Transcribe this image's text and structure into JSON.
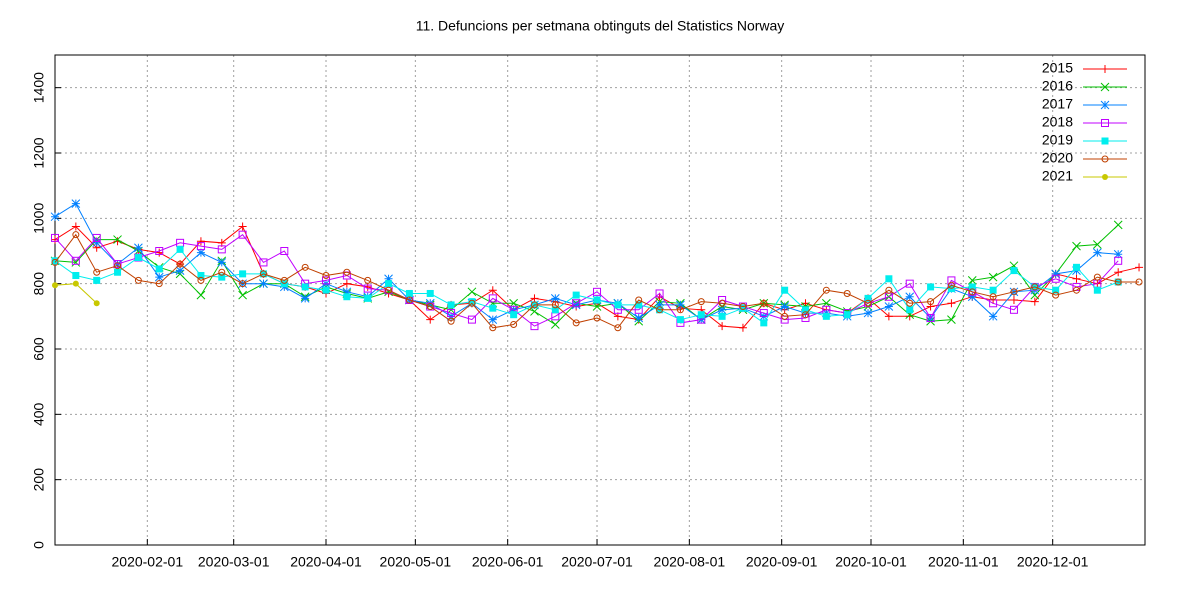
{
  "chart_data": {
    "type": "line",
    "title": "11. Defuncions per setmana obtinguts del Statistics Norway",
    "x": [
      "2020-01-01",
      "2020-01-08",
      "2020-01-15",
      "2020-01-22",
      "2020-01-29",
      "2020-02-05",
      "2020-02-12",
      "2020-02-19",
      "2020-02-26",
      "2020-03-04",
      "2020-03-11",
      "2020-03-18",
      "2020-03-25",
      "2020-04-01",
      "2020-04-08",
      "2020-04-15",
      "2020-04-22",
      "2020-04-29",
      "2020-05-06",
      "2020-05-13",
      "2020-05-20",
      "2020-05-27",
      "2020-06-03",
      "2020-06-10",
      "2020-06-17",
      "2020-06-24",
      "2020-07-01",
      "2020-07-08",
      "2020-07-15",
      "2020-07-22",
      "2020-07-29",
      "2020-08-05",
      "2020-08-12",
      "2020-08-19",
      "2020-08-26",
      "2020-09-02",
      "2020-09-09",
      "2020-09-16",
      "2020-09-23",
      "2020-09-30",
      "2020-10-07",
      "2020-10-14",
      "2020-10-21",
      "2020-10-28",
      "2020-11-04",
      "2020-11-11",
      "2020-11-18",
      "2020-11-25",
      "2020-12-02",
      "2020-12-09",
      "2020-12-16",
      "2020-12-23",
      "2020-12-30"
    ],
    "xlim": [
      "2020-01-01",
      "2021-01-01"
    ],
    "xticks": [
      "2020-02-01",
      "2020-03-01",
      "2020-04-01",
      "2020-05-01",
      "2020-06-01",
      "2020-07-01",
      "2020-08-01",
      "2020-09-01",
      "2020-10-01",
      "2020-11-01",
      "2020-12-01"
    ],
    "ylim": [
      0,
      1500
    ],
    "yticks": [
      0,
      200,
      400,
      600,
      800,
      1000,
      1200,
      1400
    ],
    "grid": true,
    "legend": "top-right",
    "series": [
      {
        "name": "2015",
        "color": "#ff0000",
        "marker": "plus",
        "values": [
          935,
          975,
          910,
          930,
          905,
          895,
          860,
          930,
          925,
          975,
          830,
          800,
          790,
          770,
          800,
          790,
          770,
          750,
          690,
          735,
          740,
          780,
          720,
          755,
          745,
          730,
          740,
          700,
          690,
          760,
          725,
          720,
          670,
          665,
          740,
          720,
          740,
          720,
          710,
          755,
          700,
          700,
          730,
          740,
          760,
          750,
          750,
          745,
          830,
          815,
          800,
          835,
          850
        ]
      },
      {
        "name": "2016",
        "color": "#00c000",
        "marker": "cross",
        "values": [
          870,
          865,
          935,
          935,
          900,
          850,
          830,
          765,
          870,
          765,
          800,
          800,
          760,
          790,
          770,
          755,
          775,
          750,
          735,
          720,
          775,
          740,
          740,
          715,
          675,
          740,
          730,
          740,
          685,
          745,
          740,
          690,
          730,
          720,
          740,
          735,
          730,
          740,
          715,
          730,
          760,
          705,
          685,
          690,
          810,
          820,
          855,
          765,
          830,
          915,
          920,
          980,
          null
        ]
      },
      {
        "name": "2017",
        "color": "#0080ff",
        "marker": "star",
        "values": [
          1005,
          1045,
          925,
          860,
          910,
          820,
          840,
          895,
          865,
          800,
          800,
          790,
          755,
          800,
          775,
          760,
          815,
          750,
          740,
          700,
          740,
          690,
          720,
          735,
          755,
          735,
          750,
          740,
          695,
          735,
          735,
          690,
          720,
          725,
          700,
          730,
          710,
          710,
          700,
          710,
          730,
          760,
          695,
          785,
          760,
          700,
          775,
          780,
          830,
          840,
          895,
          890,
          null
        ]
      },
      {
        "name": "2018",
        "color": "#c000ff",
        "marker": "square",
        "values": [
          940,
          870,
          940,
          860,
          880,
          900,
          925,
          915,
          905,
          950,
          865,
          900,
          800,
          810,
          825,
          785,
          780,
          750,
          730,
          710,
          690,
          755,
          720,
          670,
          700,
          740,
          775,
          720,
          720,
          770,
          680,
          690,
          750,
          730,
          710,
          690,
          695,
          720,
          710,
          740,
          760,
          800,
          695,
          810,
          775,
          740,
          720,
          790,
          815,
          790,
          800,
          870,
          null
        ]
      },
      {
        "name": "2019",
        "color": "#00eeee",
        "marker": "filled-square",
        "values": [
          870,
          825,
          810,
          835,
          880,
          845,
          905,
          825,
          820,
          830,
          830,
          800,
          790,
          780,
          760,
          755,
          800,
          770,
          770,
          735,
          745,
          725,
          705,
          735,
          720,
          765,
          750,
          735,
          735,
          720,
          690,
          705,
          700,
          725,
          680,
          780,
          720,
          700,
          705,
          755,
          815,
          720,
          790,
          785,
          790,
          780,
          840,
          790,
          780,
          850,
          780,
          805,
          null
        ]
      },
      {
        "name": "2020",
        "color": "#c04000",
        "marker": "circle",
        "values": [
          865,
          950,
          835,
          855,
          810,
          800,
          860,
          810,
          835,
          800,
          830,
          810,
          850,
          825,
          835,
          810,
          780,
          750,
          730,
          685,
          740,
          665,
          675,
          735,
          735,
          680,
          695,
          665,
          750,
          720,
          720,
          745,
          740,
          730,
          740,
          700,
          705,
          780,
          770,
          740,
          780,
          740,
          745,
          795,
          775,
          760,
          775,
          790,
          765,
          780,
          820,
          805,
          805
        ]
      },
      {
        "name": "2021",
        "color": "#c8c800",
        "marker": "filled-circle",
        "values": [
          795,
          800,
          740,
          null,
          null,
          null,
          null,
          null,
          null,
          null,
          null,
          null,
          null,
          null,
          null,
          null,
          null,
          null,
          null,
          null,
          null,
          null,
          null,
          null,
          null,
          null,
          null,
          null,
          null,
          null,
          null,
          null,
          null,
          null,
          null,
          null,
          null,
          null,
          null,
          null,
          null,
          null,
          null,
          null,
          null,
          null,
          null,
          null,
          null,
          null,
          null,
          null,
          null
        ]
      }
    ]
  }
}
